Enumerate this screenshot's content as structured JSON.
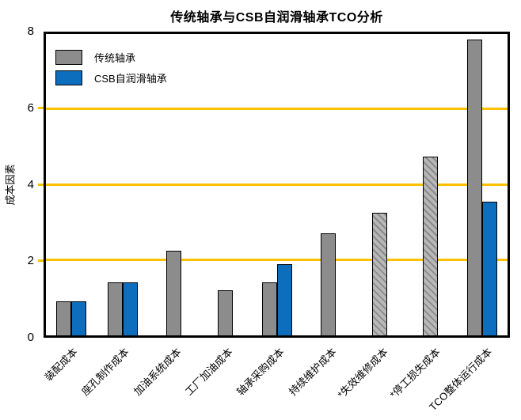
{
  "chart_data": {
    "type": "bar",
    "title": "传统轴承与CSB自润滑轴承TCO分析",
    "xlabel": "",
    "ylabel": "成本因素",
    "ylim": [
      0,
      8
    ],
    "yticks": [
      0,
      2,
      4,
      6,
      8
    ],
    "gridline_values": [
      2,
      4,
      6
    ],
    "grid_on": true,
    "legend_position": "upper left",
    "categories": [
      "装配成本",
      "座孔制作成本",
      "加油系统成本",
      "工厂加油成本",
      "轴承采购成本",
      "持续维护成本",
      "*失效维修成本",
      "*停工损失成本",
      "TCO整体运行成本"
    ],
    "series": [
      {
        "name": "传统轴承",
        "color": "#8c8c8c",
        "values": [
          0.9,
          1.4,
          2.25,
          1.2,
          1.4,
          2.7,
          3.25,
          4.75,
          7.85
        ],
        "hatched": [
          false,
          false,
          false,
          false,
          false,
          false,
          true,
          true,
          false
        ]
      },
      {
        "name": "CSB自润滑轴承",
        "color": "#0d6ebe",
        "values": [
          0.9,
          1.4,
          0,
          0,
          1.9,
          0,
          0,
          0,
          3.55
        ]
      }
    ],
    "colors": {
      "gridline": "#ffc000",
      "hatch_background": "#b8b8b8",
      "hatch_stripe": "#8a8a8a",
      "bar_edge": "#000000",
      "frame": "#000000"
    }
  }
}
